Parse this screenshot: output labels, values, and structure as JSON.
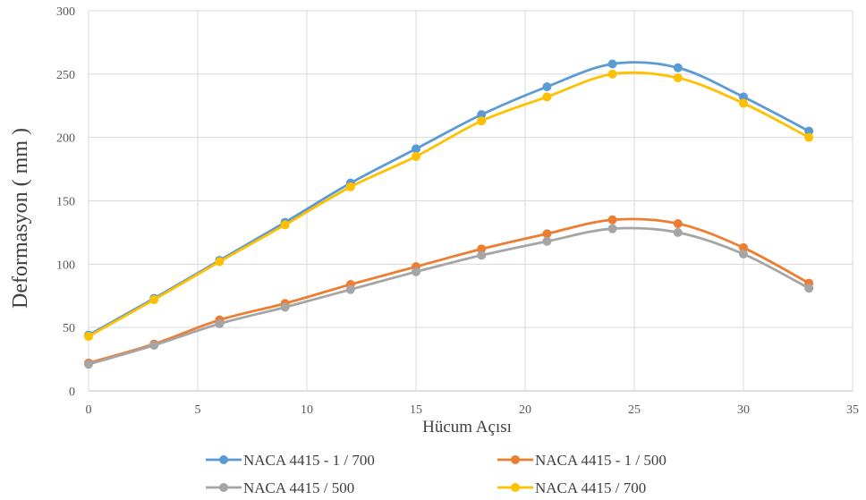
{
  "chart_data": {
    "type": "line",
    "xlabel": "Hücum Açısı",
    "ylabel": "Deformasyon ( mm )",
    "xlim": [
      0,
      35
    ],
    "ylim": [
      0,
      300
    ],
    "xticks": [
      0,
      5,
      10,
      15,
      20,
      25,
      30,
      35
    ],
    "yticks": [
      0,
      50,
      100,
      150,
      200,
      250,
      300
    ],
    "grid": "vertical and horizontal",
    "legend_position": "bottom",
    "smooth": true,
    "x": [
      0,
      3,
      6,
      9,
      12,
      15,
      18,
      21,
      24,
      27,
      30,
      33
    ],
    "series": [
      {
        "name": "NACA 4415 - 1 / 700",
        "color": "#5B9BD5",
        "values": [
          44,
          73,
          103,
          133,
          164,
          191,
          218,
          240,
          258,
          255,
          232,
          205
        ]
      },
      {
        "name": "NACA 4415 - 1 / 500",
        "color": "#ED7D31",
        "values": [
          22,
          37,
          56,
          69,
          84,
          98,
          112,
          124,
          135,
          132,
          113,
          85
        ]
      },
      {
        "name": "NACA 4415 / 500",
        "color": "#A5A5A5",
        "values": [
          21,
          36,
          53,
          66,
          80,
          94,
          107,
          118,
          128,
          125,
          108,
          81
        ]
      },
      {
        "name": "NACA 4415 / 700",
        "color": "#FFC000",
        "values": [
          43,
          72,
          102,
          131,
          161,
          185,
          213,
          232,
          250,
          247,
          227,
          200
        ]
      }
    ],
    "legend_order": [
      0,
      1,
      2,
      3
    ]
  }
}
